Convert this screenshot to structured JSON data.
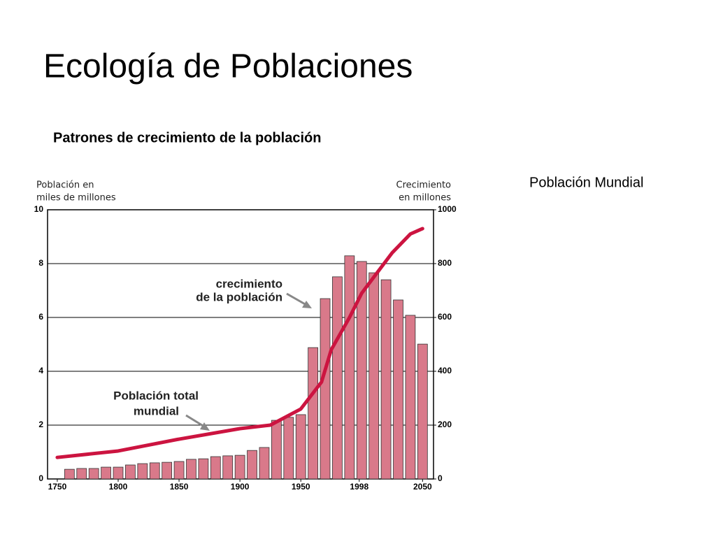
{
  "slide": {
    "title": "Ecología de Poblaciones",
    "subtitle": "Patrones de crecimiento de la población",
    "caption": "Población Mundial"
  },
  "chart_data": {
    "type": "combo",
    "ylabel": [
      "Población en",
      "miles de millones"
    ],
    "y2label": [
      "Crecimiento",
      "en millones"
    ],
    "annotations": [
      "crecimiento",
      "de la población",
      "Población total",
      "mundial"
    ],
    "xlim": [
      1742,
      2059
    ],
    "xticks": [
      1750,
      1800,
      1850,
      1900,
      1950,
      1998,
      2050
    ],
    "ylim": [
      0,
      10
    ],
    "yticks": [
      0,
      2,
      4,
      6,
      8,
      10
    ],
    "y2lim": [
      0,
      1000
    ],
    "y2ticks": [
      0,
      200,
      400,
      600,
      800,
      1000
    ],
    "grid": true,
    "series": [
      {
        "type": "bar",
        "axis": "y2",
        "color": "#d9798a",
        "x": [
          1760,
          1770,
          1780,
          1790,
          1800,
          1810,
          1820,
          1830,
          1840,
          1850,
          1860,
          1870,
          1880,
          1890,
          1900,
          1910,
          1920,
          1930,
          1940,
          1950,
          1960,
          1970,
          1980,
          1990,
          2000,
          2010,
          2020,
          2030,
          2040,
          2050
        ],
        "values": [
          36,
          39,
          39,
          44,
          44,
          52,
          57,
          60,
          62,
          65,
          73,
          75,
          83,
          86,
          88,
          106,
          117,
          218,
          229,
          239,
          488,
          670,
          751,
          829,
          808,
          766,
          740,
          665,
          608,
          501
        ]
      },
      {
        "type": "line",
        "color": "#cc1440",
        "x": [
          1750,
          1800,
          1850,
          1900,
          1925,
          1950,
          1967,
          1975,
          1990,
          2000,
          2025,
          2040,
          2050
        ],
        "values": [
          0.8,
          1.04,
          1.48,
          1.87,
          2.0,
          2.6,
          3.6,
          4.8,
          6.0,
          6.9,
          8.4,
          9.1,
          9.3
        ]
      }
    ]
  }
}
